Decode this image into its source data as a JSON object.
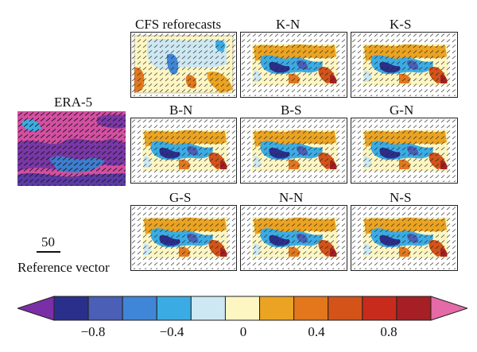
{
  "reference": {
    "vector_value": "50",
    "label": "Reference vector"
  },
  "era5": {
    "title": "ERA-5"
  },
  "panels": [
    {
      "title": "CFS reforecasts"
    },
    {
      "title": "K-N"
    },
    {
      "title": "K-S"
    },
    {
      "title": "B-N"
    },
    {
      "title": "B-S"
    },
    {
      "title": "G-N"
    },
    {
      "title": "G-S"
    },
    {
      "title": "N-N"
    },
    {
      "title": "N-S"
    }
  ],
  "colorbar": {
    "colors": [
      "#7b2fa6",
      "#2b2f8c",
      "#4a5fb5",
      "#3f86d6",
      "#3bace3",
      "#cde8f2",
      "#fdf6c3",
      "#eaa322",
      "#e2771c",
      "#d35319",
      "#c82b1c",
      "#a51f24",
      "#e56aa8"
    ],
    "tick_labels": [
      "-0.8",
      "-0.4",
      "0",
      "0.4",
      "0.8"
    ]
  }
}
